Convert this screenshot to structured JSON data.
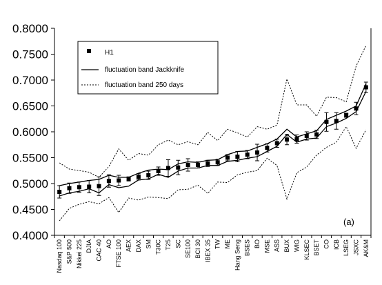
{
  "chart_data": {
    "type": "line",
    "title": "",
    "xlabel": "",
    "ylabel": "",
    "ylim": [
      0.4,
      0.8
    ],
    "y_ticks": [
      "0.4000",
      "0.4500",
      "0.5000",
      "0.5500",
      "0.6000",
      "0.6500",
      "0.7000",
      "0.7500",
      "0.8000"
    ],
    "grid": false,
    "legend_position": "top-left",
    "panel_label": "(a)",
    "categories": [
      "Nasdaq 100",
      "S&P 500",
      "Nikkei 225",
      "DJIA",
      "CAC 40",
      "AO",
      "FTSE 100",
      "AEX",
      "DAX",
      "SM",
      "T30C",
      "T25",
      "SC",
      "SE100",
      "BCI 30",
      "IBEX 35",
      "TW",
      "ME",
      "Hang Seng",
      "BSES",
      "BO",
      "MSE",
      "ASS",
      "BUX",
      "WIG",
      "KLSEC",
      "BSET",
      "CO",
      "ICB",
      "LSEG",
      "JSXC",
      "AK&M"
    ],
    "series": [
      {
        "name": "H1",
        "style": "marker",
        "values": [
          0.484,
          0.491,
          0.493,
          0.494,
          0.495,
          0.505,
          0.506,
          0.509,
          0.513,
          0.516,
          0.524,
          0.53,
          0.531,
          0.536,
          0.536,
          0.539,
          0.541,
          0.55,
          0.552,
          0.556,
          0.56,
          0.569,
          0.578,
          0.585,
          0.586,
          0.592,
          0.595,
          0.619,
          0.621,
          0.632,
          0.645,
          0.686
        ],
        "error": [
          0.012,
          0.01,
          0.01,
          0.012,
          0.018,
          0.012,
          0.01,
          0.004,
          0.006,
          0.008,
          0.008,
          0.016,
          0.014,
          0.012,
          0.006,
          0.006,
          0.006,
          0.006,
          0.01,
          0.008,
          0.016,
          0.008,
          0.008,
          0.01,
          0.008,
          0.008,
          0.008,
          0.018,
          0.016,
          0.004,
          0.012,
          0.01
        ]
      },
      {
        "name": "fluctuation band Jackknife",
        "style": "solid",
        "upper": [
          0.496,
          0.5,
          0.503,
          0.506,
          0.508,
          0.516,
          0.512,
          0.512,
          0.52,
          0.526,
          0.528,
          0.527,
          0.538,
          0.542,
          0.541,
          0.545,
          0.546,
          0.556,
          0.562,
          0.563,
          0.57,
          0.577,
          0.586,
          0.605,
          0.59,
          0.596,
          0.602,
          0.624,
          0.632,
          0.64,
          0.65,
          0.693
        ],
        "lower": [
          0.476,
          0.482,
          0.485,
          0.49,
          0.482,
          0.498,
          0.492,
          0.495,
          0.507,
          0.509,
          0.518,
          0.512,
          0.524,
          0.53,
          0.53,
          0.535,
          0.535,
          0.543,
          0.545,
          0.549,
          0.552,
          0.562,
          0.572,
          0.595,
          0.58,
          0.586,
          0.588,
          0.61,
          0.617,
          0.626,
          0.639,
          0.678
        ]
      },
      {
        "name": "fluctuation band 250 days",
        "style": "dotted",
        "upper": [
          0.54,
          0.528,
          0.525,
          0.522,
          0.512,
          0.533,
          0.567,
          0.545,
          0.558,
          0.555,
          0.575,
          0.584,
          0.575,
          0.581,
          0.575,
          0.599,
          0.583,
          0.605,
          0.598,
          0.59,
          0.61,
          0.605,
          0.613,
          0.702,
          0.652,
          0.652,
          0.63,
          0.667,
          0.666,
          0.658,
          0.727,
          0.767
        ],
        "lower": [
          0.428,
          0.452,
          0.46,
          0.465,
          0.461,
          0.473,
          0.444,
          0.472,
          0.468,
          0.474,
          0.473,
          0.471,
          0.488,
          0.489,
          0.497,
          0.481,
          0.503,
          0.502,
          0.517,
          0.522,
          0.525,
          0.549,
          0.535,
          0.47,
          0.521,
          0.532,
          0.555,
          0.57,
          0.58,
          0.61,
          0.568,
          0.604
        ]
      }
    ]
  }
}
